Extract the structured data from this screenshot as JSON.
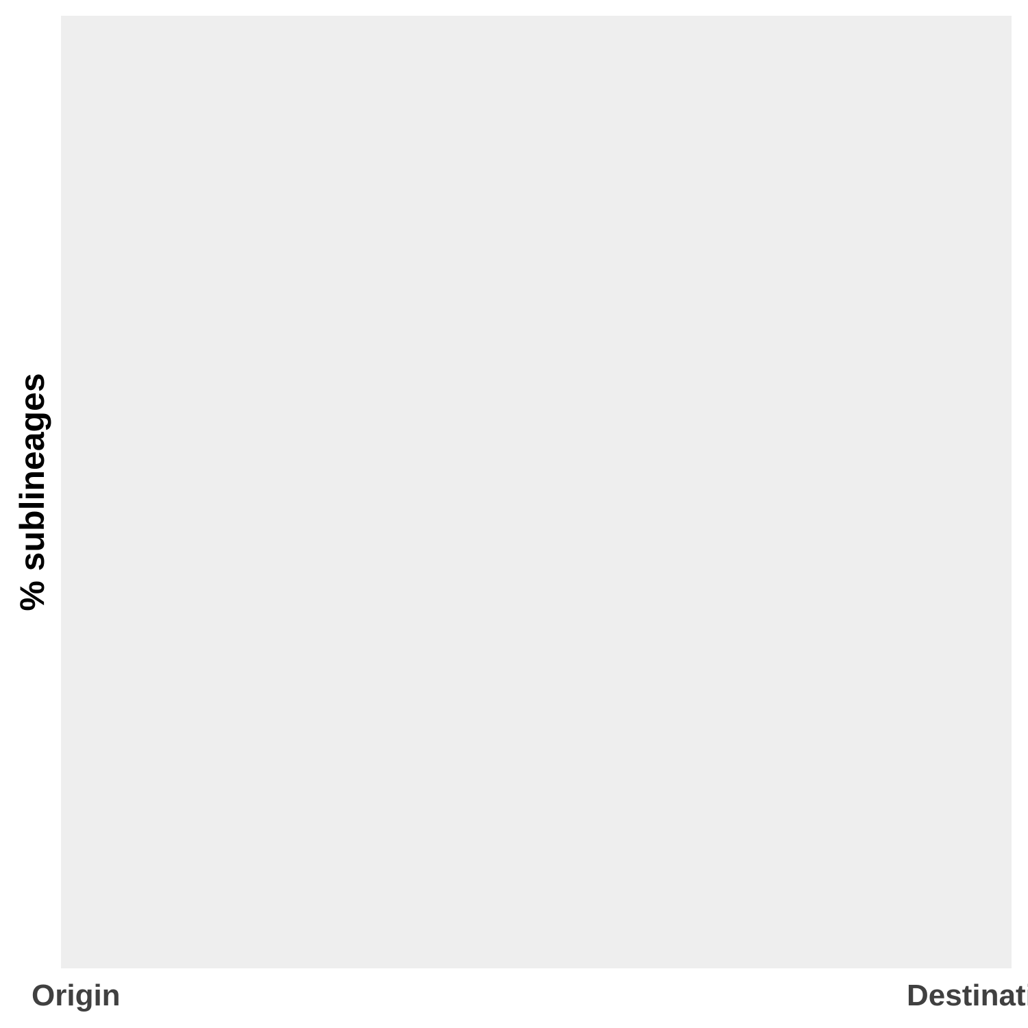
{
  "chart_data": {
    "type": "line",
    "categories": [
      "Origin",
      "Destination"
    ],
    "series": [],
    "title": "",
    "xlabel": "",
    "ylabel": "% sublineages",
    "grid": false,
    "panel_background": "#eeeeee",
    "axis_text_color": "#404040",
    "axis_title_color": "#000000"
  }
}
